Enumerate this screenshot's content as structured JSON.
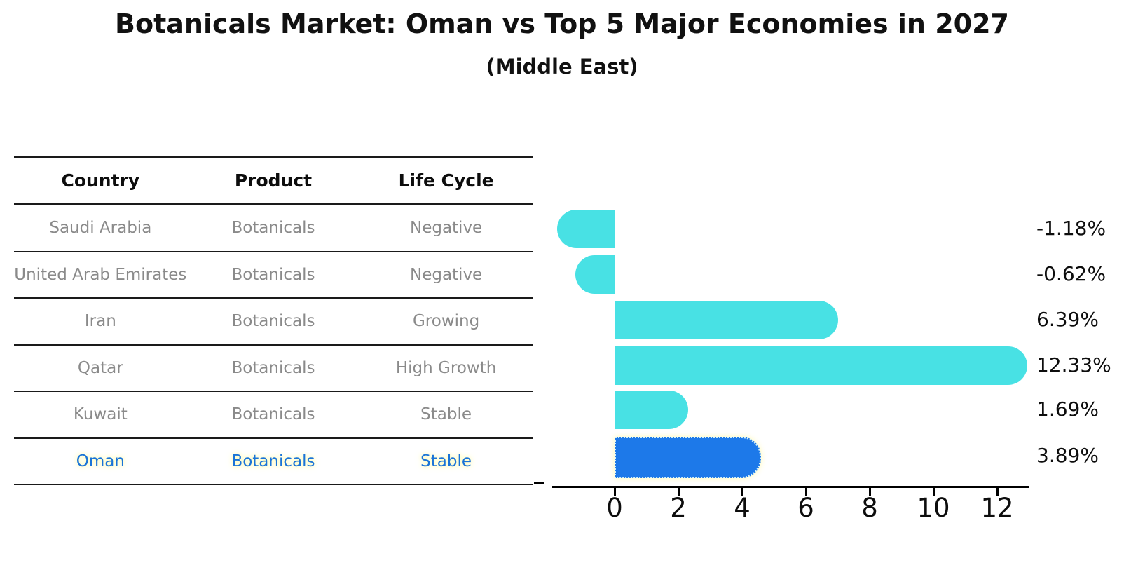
{
  "title": "Botanicals Market: Oman vs Top 5 Major Economies in 2027",
  "subtitle": "(Middle East)",
  "colors": {
    "bar_cyan": "#48e1e4",
    "bar_highlight_blue": "#1d79e9",
    "highlight_text": "#1a74d8",
    "table_text": "#8a8a8a",
    "axis": "#000000"
  },
  "table": {
    "headers": [
      "Country",
      "Product",
      "Life Cycle"
    ],
    "rows": [
      {
        "country": "Saudi Arabia",
        "product": "Botanicals",
        "life_cycle": "Negative",
        "highlight": false
      },
      {
        "country": "United Arab Emirates",
        "product": "Botanicals",
        "life_cycle": "Negative",
        "highlight": false
      },
      {
        "country": "Iran",
        "product": "Botanicals",
        "life_cycle": "Growing",
        "highlight": false
      },
      {
        "country": "Qatar",
        "product": "Botanicals",
        "life_cycle": "High Growth",
        "highlight": false
      },
      {
        "country": "Kuwait",
        "product": "Botanicals",
        "life_cycle": "Stable",
        "highlight": false
      },
      {
        "country": "Oman",
        "product": "Botanicals",
        "life_cycle": "Stable",
        "highlight": true
      }
    ]
  },
  "chart_data": {
    "type": "bar",
    "orientation": "horizontal",
    "title": "Botanicals Market: Oman vs Top 5 Major Economies in 2027",
    "subtitle": "(Middle East)",
    "categories": [
      "Saudi Arabia",
      "United Arab Emirates",
      "Iran",
      "Qatar",
      "Kuwait",
      "Oman"
    ],
    "values": [
      -1.18,
      -0.62,
      6.39,
      12.33,
      1.69,
      3.89
    ],
    "value_labels": [
      "-1.18%",
      "-0.62%",
      "6.39%",
      "12.33%",
      "1.69%",
      "3.89%"
    ],
    "highlight_index": 5,
    "x_ticks": [
      0,
      2,
      4,
      6,
      8,
      10,
      12
    ],
    "xlim": [
      -2,
      13
    ],
    "xlabel": "",
    "ylabel": "",
    "grid": false,
    "legend": false
  }
}
